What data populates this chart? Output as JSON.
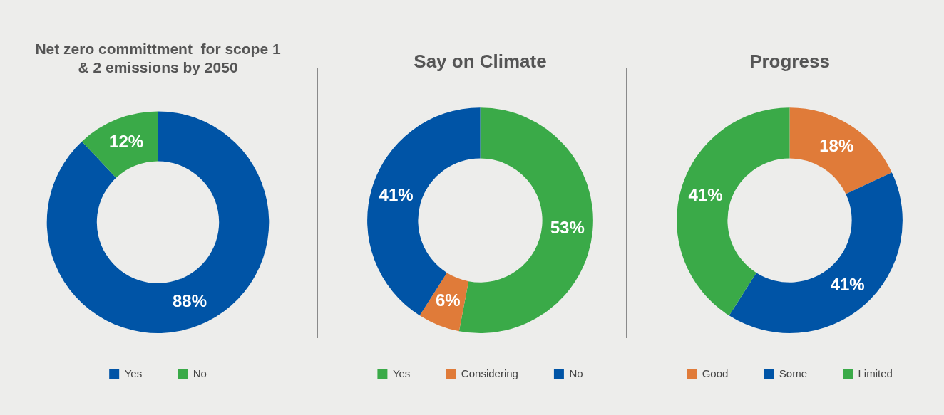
{
  "chart_data": [
    {
      "type": "donut",
      "title": "Net zero committment  for scope 1 & 2 emissions by 2050",
      "categories": [
        "Yes",
        "No"
      ],
      "values": [
        88,
        12
      ],
      "colors": [
        "#0054a6",
        "#3aaa48"
      ],
      "value_labels": [
        "88%",
        "12%"
      ],
      "legend": "bottom"
    },
    {
      "type": "donut",
      "title": "Say on Climate",
      "categories": [
        "Yes",
        "Considering",
        "No"
      ],
      "values": [
        53,
        6,
        41
      ],
      "colors": [
        "#3aaa48",
        "#e07b39",
        "#0054a6"
      ],
      "value_labels": [
        "53%",
        "6%",
        "41%"
      ],
      "legend": "bottom"
    },
    {
      "type": "donut",
      "title": "Progress",
      "categories": [
        "Good",
        "Some",
        "Limited"
      ],
      "values": [
        18,
        41,
        41
      ],
      "colors": [
        "#e07b39",
        "#0054a6",
        "#3aaa48"
      ],
      "value_labels": [
        "18%",
        "41%",
        "41%"
      ],
      "legend": "bottom"
    }
  ]
}
